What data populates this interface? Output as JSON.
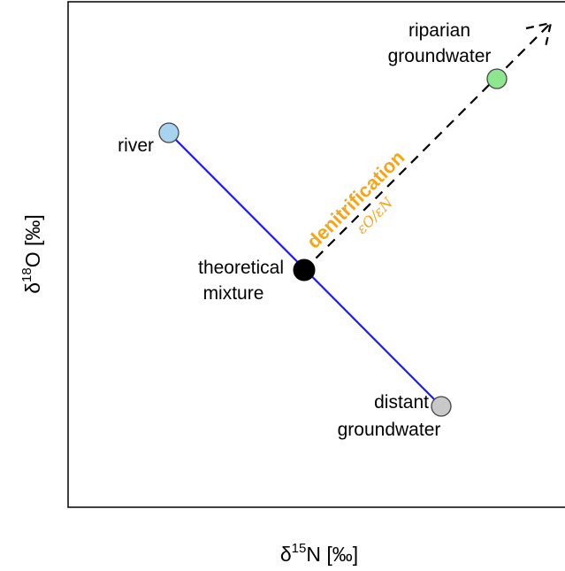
{
  "axes": {
    "x_label": {
      "symbol": "δ",
      "sup": "15",
      "rest": "N [‰]"
    },
    "y_label": {
      "symbol": "δ",
      "sup": "18",
      "rest": "O [‰]"
    }
  },
  "points": {
    "river": {
      "label": "river",
      "color": "#a8d3ef"
    },
    "theoretical": {
      "label_line1": "theoretical",
      "label_line2": "mixture",
      "color": "#000000"
    },
    "distant": {
      "label_line1": "distant",
      "label_line2": "groundwater",
      "color": "#c8c8c8"
    },
    "riparian": {
      "label_line1": "riparian",
      "label_line2": "groundwater",
      "color": "#8ee68e"
    }
  },
  "mixing_line": {
    "color": "#1a1aff"
  },
  "denitrification": {
    "label": "denitrification",
    "ratio": "εO/εN",
    "color": "#f5a516"
  }
}
